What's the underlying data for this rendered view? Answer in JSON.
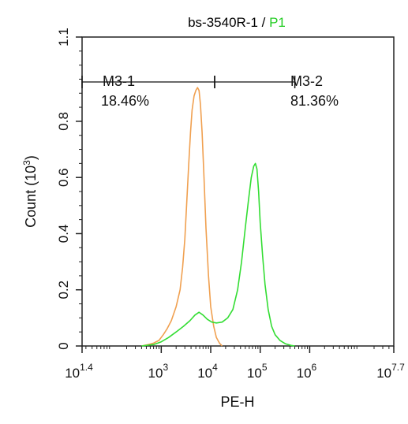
{
  "chart_data": {
    "type": "line",
    "title_main": "bs-3540R-1 / ",
    "title_gate": "P1",
    "title_gate_color": "#22cc22",
    "xlabel": "PE-H",
    "ylabel_main": "Count  (10",
    "ylabel_exp": "3",
    "ylabel_close": ")",
    "x_scale": "log",
    "xlim": [
      25.1,
      50118723
    ],
    "ylim": [
      0,
      1.1
    ],
    "x_ticks": [
      {
        "value": 25.1,
        "base": "10",
        "exp": "1.4"
      },
      {
        "value": 1000,
        "base": "10",
        "exp": "3"
      },
      {
        "value": 10000,
        "base": "10",
        "exp": "4"
      },
      {
        "value": 100000,
        "base": "10",
        "exp": "5"
      },
      {
        "value": 1000000,
        "base": "10",
        "exp": "6"
      },
      {
        "value": 50118723,
        "base": "10",
        "exp": "7.7"
      }
    ],
    "y_ticks": [
      "0",
      "0.2",
      "0.4",
      "0.6",
      "0.8",
      "1.1"
    ],
    "y_tick_values": [
      0,
      0.2,
      0.4,
      0.6,
      0.8,
      1.1
    ],
    "series": [
      {
        "color": "#f0a050",
        "points": [
          [
            400,
            0
          ],
          [
            550,
            0.005
          ],
          [
            700,
            0.01
          ],
          [
            900,
            0.02
          ],
          [
            1100,
            0.04
          ],
          [
            1300,
            0.06
          ],
          [
            1600,
            0.09
          ],
          [
            2000,
            0.14
          ],
          [
            2400,
            0.2
          ],
          [
            2700,
            0.28
          ],
          [
            3000,
            0.38
          ],
          [
            3300,
            0.52
          ],
          [
            3600,
            0.65
          ],
          [
            3900,
            0.76
          ],
          [
            4200,
            0.84
          ],
          [
            4600,
            0.89
          ],
          [
            5000,
            0.91
          ],
          [
            5400,
            0.92
          ],
          [
            5800,
            0.91
          ],
          [
            6200,
            0.86
          ],
          [
            6700,
            0.76
          ],
          [
            7300,
            0.6
          ],
          [
            8000,
            0.42
          ],
          [
            9000,
            0.25
          ],
          [
            10000,
            0.14
          ],
          [
            11500,
            0.07
          ],
          [
            13000,
            0.03
          ],
          [
            15000,
            0.01
          ],
          [
            17000,
            0
          ]
        ]
      },
      {
        "color": "#33dd33",
        "points": [
          [
            400,
            0
          ],
          [
            700,
            0.005
          ],
          [
            1000,
            0.015
          ],
          [
            1400,
            0.03
          ],
          [
            2000,
            0.05
          ],
          [
            2800,
            0.07
          ],
          [
            3800,
            0.09
          ],
          [
            4800,
            0.11
          ],
          [
            5800,
            0.12
          ],
          [
            7000,
            0.11
          ],
          [
            8500,
            0.095
          ],
          [
            10500,
            0.085
          ],
          [
            13000,
            0.082
          ],
          [
            17000,
            0.085
          ],
          [
            22000,
            0.1
          ],
          [
            28000,
            0.13
          ],
          [
            35000,
            0.2
          ],
          [
            42000,
            0.3
          ],
          [
            50000,
            0.42
          ],
          [
            58000,
            0.52
          ],
          [
            66000,
            0.6
          ],
          [
            74000,
            0.64
          ],
          [
            80000,
            0.65
          ],
          [
            86000,
            0.63
          ],
          [
            93000,
            0.55
          ],
          [
            100000,
            0.44
          ],
          [
            112000,
            0.32
          ],
          [
            125000,
            0.22
          ],
          [
            145000,
            0.13
          ],
          [
            170000,
            0.07
          ],
          [
            200000,
            0.04
          ],
          [
            250000,
            0.02
          ],
          [
            320000,
            0.008
          ],
          [
            420000,
            0.002
          ],
          [
            500000,
            0
          ]
        ]
      }
    ],
    "gates": [
      {
        "name": "M3-1",
        "percent": "18.46%",
        "range": [
          25.1,
          12000
        ],
        "y": 0.94
      },
      {
        "name": "M3-2",
        "percent": "81.36%",
        "range": [
          12000,
          501187
        ],
        "y": 0.94
      }
    ]
  }
}
